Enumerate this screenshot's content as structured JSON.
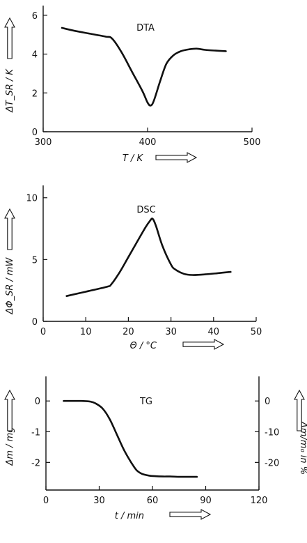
{
  "chart_data": [
    {
      "type": "line",
      "title": "DTA",
      "xlabel": "T / K",
      "ylabel": "ΔT_SR / K",
      "xlim": [
        300,
        500
      ],
      "ylim": [
        0,
        6.5
      ],
      "x_ticks": [
        300,
        400,
        500
      ],
      "y_ticks": [
        0,
        2,
        4,
        6
      ],
      "x_tick_labels": [
        "300",
        "400",
        "500"
      ],
      "y_tick_labels": [
        "0",
        "2",
        "4",
        "6"
      ],
      "grid": false,
      "series": [
        {
          "x": [
            318,
            330,
            345,
            360,
            366,
            375,
            385,
            395,
            400,
            403,
            406,
            412,
            418,
            425,
            432,
            440,
            447,
            455,
            465,
            475
          ],
          "y": [
            5.35,
            5.2,
            5.05,
            4.9,
            4.8,
            4.1,
            3.1,
            2.1,
            1.5,
            1.35,
            1.6,
            2.6,
            3.5,
            3.95,
            4.15,
            4.25,
            4.28,
            4.22,
            4.18,
            4.15
          ]
        }
      ]
    },
    {
      "type": "line",
      "title": "DSC",
      "xlabel": "Θ / °C",
      "ylabel": "ΔΦ_SR / mW",
      "xlim": [
        0,
        50
      ],
      "ylim": [
        0,
        11
      ],
      "x_ticks": [
        0,
        10,
        20,
        30,
        40,
        50
      ],
      "y_ticks": [
        0,
        5,
        10
      ],
      "x_tick_labels": [
        "0",
        "10",
        "20",
        "30",
        "40",
        "50"
      ],
      "y_tick_labels": [
        "0",
        "5",
        "10"
      ],
      "grid": false,
      "series": [
        {
          "x": [
            5.5,
            10,
            15,
            16,
            18,
            20,
            22,
            24,
            25,
            25.7,
            26.5,
            28,
            30,
            31,
            33,
            35,
            38,
            41,
            44
          ],
          "y": [
            2.05,
            2.4,
            2.8,
            3.0,
            4.0,
            5.2,
            6.4,
            7.6,
            8.1,
            8.3,
            7.7,
            6.1,
            4.6,
            4.2,
            3.85,
            3.75,
            3.8,
            3.9,
            4.0
          ]
        }
      ]
    },
    {
      "type": "line",
      "title": "TG",
      "xlabel": "t / min",
      "ylabel": "Δm / mg",
      "ylabel_right": "Δm/m₀ in %",
      "xlim": [
        0,
        120
      ],
      "ylim": [
        -2.9,
        0.8
      ],
      "ylim_right": [
        -29,
        8
      ],
      "x_ticks": [
        0,
        30,
        60,
        90,
        120
      ],
      "y_ticks": [
        0,
        -1,
        -2
      ],
      "y_ticks_right": [
        0,
        -10,
        -20
      ],
      "x_tick_labels": [
        "0",
        "30",
        "60",
        "90",
        "120"
      ],
      "y_tick_labels": [
        "0",
        "-1",
        "-2"
      ],
      "y_tick_labels_right": [
        "0",
        "-10",
        "-20"
      ],
      "grid": false,
      "series": [
        {
          "x": [
            10,
            15,
            20,
            25,
            28,
            32,
            36,
            40,
            44,
            48,
            51,
            54,
            58,
            62,
            66,
            70,
            75,
            80,
            85
          ],
          "y": [
            0,
            0,
            0,
            -0.02,
            -0.08,
            -0.25,
            -0.6,
            -1.1,
            -1.6,
            -2.0,
            -2.25,
            -2.37,
            -2.43,
            -2.45,
            -2.46,
            -2.46,
            -2.47,
            -2.47,
            -2.47
          ]
        }
      ]
    }
  ]
}
